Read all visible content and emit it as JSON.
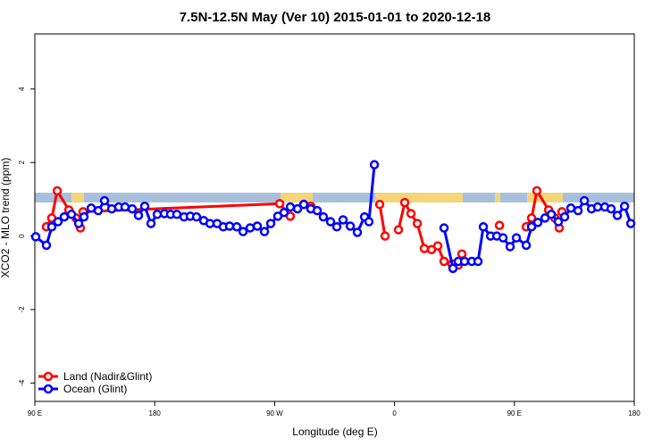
{
  "chart_data": {
    "type": "line",
    "title": "7.5N-12.5N May (Ver 10)   2015-01-01 to 2020-12-18",
    "xlabel": "Longitude (deg E)",
    "ylabel": "XCO2 - MLO trend (ppm)",
    "xlim": [
      90,
      540
    ],
    "xticks": [
      {
        "value": 90,
        "label": "90 E"
      },
      180,
      {
        "value": 270,
        "label": "90 W"
      },
      {
        "value": 360,
        "label": "0"
      },
      {
        "value": 450,
        "label": "90 E"
      },
      {
        "value": 540,
        "label": "180"
      }
    ],
    "ylim": [
      -4.5,
      5.5
    ],
    "yticks": [
      -4,
      -2,
      0,
      2,
      4
    ],
    "legend": "bottom-left",
    "series": [
      {
        "name": "Land (Nadir&Glint)",
        "color": "#ff0000",
        "x": [
          98.7,
          102.7,
          106.8,
          115.5,
          120.9,
          124.2,
          125.2,
          126.2,
          273.8,
          281.8,
          286.8,
          291.9,
          297.2,
          320,
          348.9,
          352.9,
          358,
          363,
          367.7,
          372.4,
          377.1,
          382.4,
          387.8,
          392.5,
          397.2,
          403.2,
          407.9,
          410.6,
          425,
          438.8,
          450,
          458.9,
          462.9,
          466.9,
          475.7,
          480.4,
          483.7,
          484.7,
          485.7
        ],
        "values": [
          0.25,
          0.49,
          1.23,
          0.71,
          0.49,
          0.22,
          null,
          0.66,
          0.88,
          0.54,
          null,
          0.86,
          0.81,
          null,
          0.86,
          0,
          null,
          0.17,
          0.91,
          0.61,
          0.34,
          -0.34,
          -0.37,
          -0.27,
          -0.69,
          -0.76,
          -0.79,
          -0.49,
          null,
          0.29,
          null,
          0.25,
          0.49,
          1.23,
          0.71,
          0.49,
          0.22,
          null,
          0.66
        ]
      },
      {
        "name": "Ocean (Glint)",
        "color": "#0000ff",
        "x": [
          90.7,
          98.7,
          102.7,
          107.4,
          112.1,
          117.5,
          122.9,
          126.9,
          132.3,
          137.6,
          142.3,
          147.7,
          153,
          157.7,
          163.1,
          167.8,
          172.5,
          177.2,
          181.9,
          187.3,
          191.9,
          196.6,
          202,
          206.7,
          211.4,
          216.8,
          221.5,
          226.8,
          231.5,
          236.2,
          241.6,
          246.3,
          251.6,
          257,
          262.4,
          267.1,
          272.4,
          277.1,
          281.8,
          287.2,
          291.9,
          297.2,
          302,
          306.6,
          312,
          316.7,
          321.4,
          326.8,
          332.1,
          337.5,
          340.8,
          344.9,
          370,
          397.2,
          403.9,
          407.9,
          412.6,
          418,
          422.7,
          426.7,
          432.1,
          436.8,
          441.5,
          446.8,
          451.5,
          458.9,
          462.9,
          467.6,
          473,
          477.7,
          483,
          487.7,
          492.4,
          497.8,
          502.5,
          507.9,
          512.5,
          517.9,
          522.6,
          527.3,
          532.7,
          537.4
        ],
        "values": [
          -0.02,
          -0.25,
          0.25,
          0.39,
          0.52,
          0.59,
          0.34,
          0.52,
          0.76,
          0.69,
          0.96,
          0.74,
          0.79,
          0.79,
          0.74,
          0.56,
          0.81,
          0.34,
          0.59,
          0.61,
          0.59,
          0.59,
          0.52,
          0.54,
          0.52,
          0.42,
          0.34,
          0.34,
          0.25,
          0.27,
          0.25,
          0.12,
          0.22,
          0.27,
          0.12,
          0.34,
          0.54,
          0.64,
          0.79,
          0.74,
          0.86,
          0.74,
          0.69,
          0.52,
          0.39,
          0.25,
          0.44,
          0.27,
          0.1,
          0.52,
          0.39,
          1.94,
          null,
          0.22,
          -0.88,
          -0.69,
          -0.69,
          -0.69,
          -0.69,
          0.25,
          0,
          0,
          -0.05,
          -0.29,
          -0.05,
          -0.25,
          0.25,
          0.37,
          0.49,
          0.59,
          0.39,
          0.52,
          0.76,
          0.69,
          0.96,
          0.74,
          0.79,
          0.79,
          0.74,
          0.56,
          0.81,
          0.34
        ]
      }
    ]
  }
}
